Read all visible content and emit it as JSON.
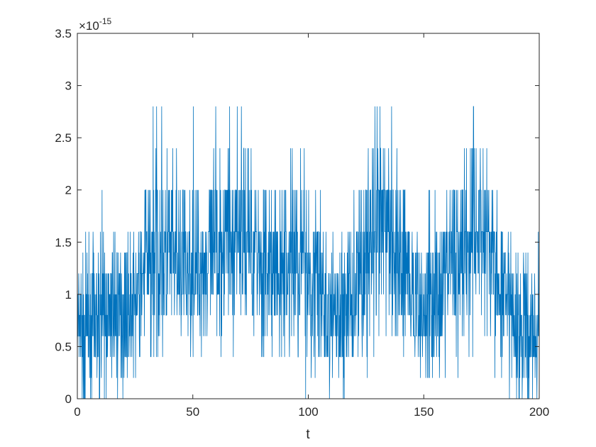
{
  "chart_data": {
    "type": "line",
    "title": "",
    "xlabel": "t",
    "ylabel": "",
    "xlim": [
      0,
      200
    ],
    "ylim": [
      0,
      3.5
    ],
    "y_exponent": {
      "base": "×10",
      "power": "-15"
    },
    "xticks": [
      0,
      50,
      100,
      150,
      200
    ],
    "xtick_labels": [
      "0",
      "50",
      "100",
      "150",
      "200"
    ],
    "yticks": [
      0,
      0.5,
      1,
      1.5,
      2,
      2.5,
      3,
      3.5
    ],
    "ytick_labels": [
      "0",
      "0.5",
      "1",
      "1.5",
      "2",
      "2.5",
      "3",
      "3.5"
    ],
    "grid": false,
    "box": true,
    "series": [
      {
        "color": "#0072BD",
        "x": [
          0,
          5,
          10,
          15,
          20,
          25,
          30,
          35,
          40,
          45,
          50,
          55,
          60,
          65,
          70,
          75,
          80,
          85,
          90,
          95,
          100,
          105,
          110,
          115,
          120,
          125,
          130,
          135,
          140,
          145,
          150,
          155,
          160,
          165,
          170,
          175,
          180,
          185,
          190,
          195,
          200
        ],
        "y": [
          0.6,
          0.7,
          0.75,
          0.8,
          0.85,
          0.95,
          1.25,
          1.45,
          1.35,
          1.25,
          1.2,
          1.25,
          1.45,
          1.6,
          1.65,
          1.55,
          1.3,
          1.15,
          1.25,
          1.35,
          1.3,
          1.0,
          0.75,
          0.8,
          1.1,
          1.35,
          1.55,
          1.7,
          1.4,
          0.95,
          0.85,
          1.05,
          1.25,
          1.45,
          1.6,
          1.6,
          1.3,
          0.9,
          0.7,
          0.65,
          0.7
        ],
        "noise_amplitude": [
          0.55,
          0.65,
          0.6,
          0.6,
          0.6,
          0.55,
          0.8,
          0.9,
          0.7,
          0.7,
          0.65,
          0.6,
          0.75,
          0.85,
          0.75,
          0.7,
          0.7,
          0.65,
          0.7,
          0.75,
          0.85,
          0.7,
          0.6,
          0.65,
          0.75,
          0.8,
          0.9,
          0.85,
          0.7,
          0.65,
          0.65,
          0.7,
          0.7,
          0.8,
          0.8,
          0.85,
          0.7,
          0.65,
          0.6,
          0.6,
          0.6
        ],
        "samples": 2000,
        "seed": 7
      }
    ]
  }
}
